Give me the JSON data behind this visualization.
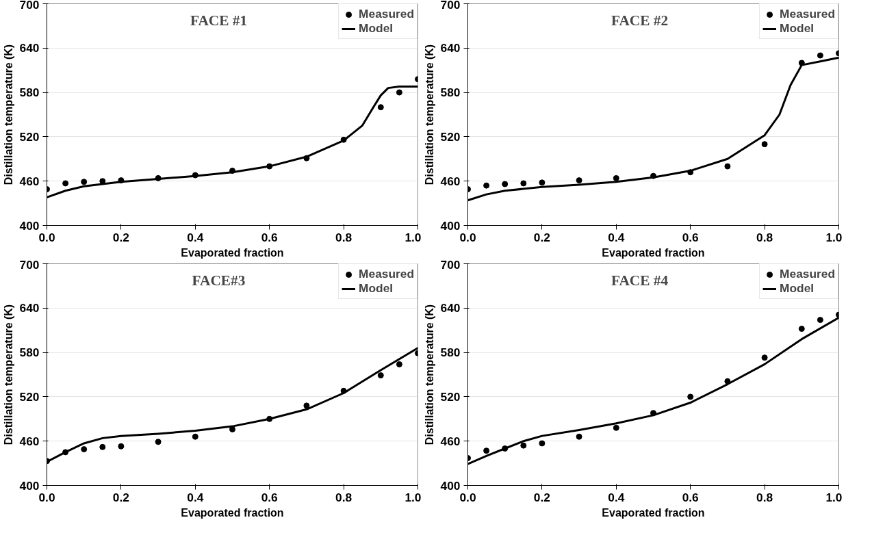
{
  "chart_data": [
    {
      "type": "line",
      "title": "FACE #1",
      "xlabel": "Evaporated fraction",
      "ylabel": "Distillation temperature (K)",
      "xlim": [
        0,
        1
      ],
      "ylim": [
        400,
        700
      ],
      "xticks": [
        {
          "value": 0,
          "label": "0.0"
        },
        {
          "value": 0.2,
          "label": "0.2"
        },
        {
          "value": 0.4,
          "label": "0.4"
        },
        {
          "value": 0.6,
          "label": "0.6"
        },
        {
          "value": 0.8,
          "label": "0.8"
        },
        {
          "value": 1,
          "label": "1.0"
        }
      ],
      "yticks": [
        400,
        460,
        520,
        580,
        640,
        700
      ],
      "grid": "y",
      "legend": "top right",
      "series": [
        {
          "name": "Measured",
          "type": "scatter",
          "marker": "circle",
          "color": "#000000",
          "x": [
            0,
            0.05,
            0.1,
            0.15,
            0.2,
            0.3,
            0.4,
            0.5,
            0.6,
            0.7,
            0.8,
            0.9,
            0.95,
            1.0
          ],
          "values": [
            449,
            457,
            459,
            460,
            461,
            464,
            468,
            474,
            480,
            491,
            516,
            560,
            580,
            598
          ]
        },
        {
          "name": "Model",
          "line_style": "solid",
          "color": "#000000",
          "x": [
            0,
            0.05,
            0.1,
            0.2,
            0.3,
            0.4,
            0.5,
            0.6,
            0.7,
            0.8,
            0.85,
            0.88,
            0.9,
            0.92,
            0.95,
            1.0
          ],
          "values": [
            438,
            447,
            453,
            459,
            463,
            467,
            472,
            480,
            493,
            515,
            535,
            560,
            576,
            586,
            588,
            588
          ]
        }
      ]
    },
    {
      "type": "line",
      "title": "FACE #2",
      "xlabel": "Evaporated fraction",
      "ylabel": "Distillation temperature (K)",
      "xlim": [
        0,
        1
      ],
      "ylim": [
        400,
        700
      ],
      "xticks": [
        {
          "value": 0,
          "label": "0.0"
        },
        {
          "value": 0.2,
          "label": "0.2"
        },
        {
          "value": 0.4,
          "label": "0.4"
        },
        {
          "value": 0.6,
          "label": "0.6"
        },
        {
          "value": 0.8,
          "label": "0.8"
        },
        {
          "value": 1,
          "label": "1.0"
        }
      ],
      "yticks": [
        400,
        460,
        520,
        580,
        640,
        700
      ],
      "grid": "y",
      "legend": "top right",
      "series": [
        {
          "name": "Measured",
          "type": "scatter",
          "marker": "circle",
          "color": "#000000",
          "x": [
            0,
            0.05,
            0.1,
            0.15,
            0.2,
            0.3,
            0.4,
            0.5,
            0.6,
            0.7,
            0.8,
            0.9,
            0.95,
            1.0
          ],
          "values": [
            449,
            454,
            456,
            457,
            458,
            461,
            464,
            467,
            472,
            480,
            510,
            620,
            630,
            633
          ]
        },
        {
          "name": "Model",
          "line_style": "solid",
          "color": "#000000",
          "x": [
            0,
            0.05,
            0.1,
            0.2,
            0.3,
            0.4,
            0.5,
            0.6,
            0.7,
            0.8,
            0.84,
            0.87,
            0.9,
            0.95,
            1.0
          ],
          "values": [
            434,
            442,
            447,
            452,
            455,
            459,
            465,
            474,
            490,
            522,
            550,
            590,
            617,
            622,
            627
          ]
        }
      ]
    },
    {
      "type": "line",
      "title": "FACE#3",
      "xlabel": "Evaporated fraction",
      "ylabel": "Distillation temperature (K)",
      "xlim": [
        0,
        1
      ],
      "ylim": [
        400,
        700
      ],
      "xticks": [
        {
          "value": 0,
          "label": "0.0"
        },
        {
          "value": 0.2,
          "label": "0.2"
        },
        {
          "value": 0.4,
          "label": "0.4"
        },
        {
          "value": 0.6,
          "label": "0.6"
        },
        {
          "value": 0.8,
          "label": "0.8"
        },
        {
          "value": 1,
          "label": "1.0"
        }
      ],
      "yticks": [
        400,
        460,
        520,
        580,
        640,
        700
      ],
      "grid": "y",
      "legend": "top right",
      "series": [
        {
          "name": "Measured",
          "type": "scatter",
          "marker": "circle",
          "color": "#000000",
          "x": [
            0,
            0.05,
            0.1,
            0.15,
            0.2,
            0.3,
            0.4,
            0.5,
            0.6,
            0.7,
            0.8,
            0.9,
            0.95,
            1.0
          ],
          "values": [
            433,
            445,
            449,
            452,
            453,
            459,
            466,
            476,
            490,
            508,
            528,
            549,
            564,
            579
          ]
        },
        {
          "name": "Model",
          "line_style": "solid",
          "color": "#000000",
          "x": [
            0,
            0.05,
            0.1,
            0.15,
            0.2,
            0.3,
            0.4,
            0.5,
            0.6,
            0.7,
            0.8,
            0.9,
            1.0
          ],
          "values": [
            432,
            445,
            457,
            464,
            467,
            470,
            474,
            480,
            490,
            503,
            525,
            556,
            586
          ]
        }
      ]
    },
    {
      "type": "line",
      "title": "FACE #4",
      "xlabel": "Evaporated fraction",
      "ylabel": "Distillation temperature (K)",
      "xlim": [
        0,
        1
      ],
      "ylim": [
        400,
        700
      ],
      "xticks": [
        {
          "value": 0,
          "label": "0.0"
        },
        {
          "value": 0.2,
          "label": "0.2"
        },
        {
          "value": 0.4,
          "label": "0.4"
        },
        {
          "value": 0.6,
          "label": "0.6"
        },
        {
          "value": 0.8,
          "label": "0.8"
        },
        {
          "value": 1,
          "label": "1.0"
        }
      ],
      "yticks": [
        400,
        460,
        520,
        580,
        640,
        700
      ],
      "grid": "y",
      "legend": "top right",
      "series": [
        {
          "name": "Measured",
          "type": "scatter",
          "marker": "circle",
          "color": "#000000",
          "x": [
            0,
            0.05,
            0.1,
            0.15,
            0.2,
            0.3,
            0.4,
            0.5,
            0.6,
            0.7,
            0.8,
            0.9,
            0.95,
            1.0
          ],
          "values": [
            437,
            447,
            450,
            454,
            457,
            466,
            478,
            498,
            520,
            541,
            573,
            612,
            624,
            631
          ]
        },
        {
          "name": "Model",
          "line_style": "solid",
          "color": "#000000",
          "x": [
            0,
            0.05,
            0.1,
            0.15,
            0.2,
            0.3,
            0.4,
            0.5,
            0.6,
            0.7,
            0.8,
            0.9,
            1.0
          ],
          "values": [
            429,
            440,
            450,
            460,
            467,
            475,
            484,
            495,
            512,
            537,
            564,
            598,
            627
          ]
        }
      ]
    }
  ]
}
